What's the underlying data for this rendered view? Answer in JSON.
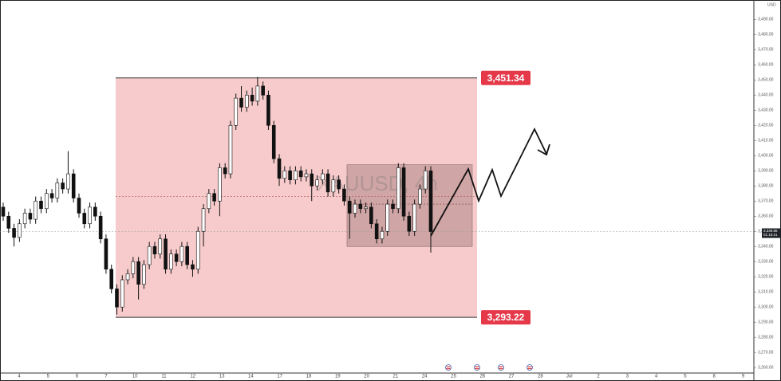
{
  "chart_data": {
    "type": "candlestick",
    "watermark": "XAUUSD, 4h",
    "currency": "USD",
    "ylim": [
      3256.4,
      3502.3
    ],
    "yticks": [
      {
        "value": 3260,
        "label": "3,260.00"
      },
      {
        "value": 3270,
        "label": "3,270.00"
      },
      {
        "value": 3280,
        "label": "3,280.00"
      },
      {
        "value": 3290,
        "label": "3,290.00"
      },
      {
        "value": 3300,
        "label": "3,300.00"
      },
      {
        "value": 3310,
        "label": "3,310.00"
      },
      {
        "value": 3320,
        "label": "3,320.00"
      },
      {
        "value": 3330,
        "label": "3,330.00"
      },
      {
        "value": 3340,
        "label": "3,340.00"
      },
      {
        "value": 3350,
        "label": "3,350.00"
      },
      {
        "value": 3360,
        "label": "3,360.00"
      },
      {
        "value": 3370,
        "label": "3,370.00"
      },
      {
        "value": 3380,
        "label": "3,380.00"
      },
      {
        "value": 3390,
        "label": "3,390.00"
      },
      {
        "value": 3400,
        "label": "3,400.00"
      },
      {
        "value": 3410,
        "label": "3,410.00"
      },
      {
        "value": 3420,
        "label": "3,420.00"
      },
      {
        "value": 3430,
        "label": "3,430.00"
      },
      {
        "value": 3440,
        "label": "3,440.00"
      },
      {
        "value": 3450,
        "label": "3,450.00"
      },
      {
        "value": 3460,
        "label": "3,460.00"
      },
      {
        "value": 3470,
        "label": "3,470.00"
      },
      {
        "value": 3480,
        "label": "3,480.00"
      },
      {
        "value": 3490,
        "label": "3,490.00"
      }
    ],
    "x_labels": [
      "4",
      "5",
      "6",
      "7",
      "10",
      "11",
      "12",
      "13",
      "14",
      "17",
      "18",
      "19",
      "20",
      "21",
      "24",
      "25",
      "26",
      "27",
      "28",
      "Jul",
      "2",
      "3",
      "4",
      "5",
      "8",
      "9"
    ],
    "open": [
      3366,
      3360,
      3352,
      3346,
      3355,
      3362,
      3358,
      3370,
      3365,
      3375,
      3372,
      3382,
      3378,
      3388,
      3372,
      3362,
      3355,
      3366,
      3360,
      3345,
      3325,
      3312,
      3300,
      3318,
      3322,
      3330,
      3315,
      3328,
      3340,
      3335,
      3345,
      3325,
      3335,
      3330,
      3340,
      3328,
      3325,
      3350,
      3365,
      3375,
      3370,
      3392,
      3388,
      3420,
      3438,
      3432,
      3440,
      3436,
      3446,
      3440,
      3420,
      3398,
      3385,
      3390,
      3384,
      3390,
      3386,
      3388,
      3380,
      3384,
      3388,
      3376,
      3384,
      3378,
      3370,
      3362,
      3368,
      3365,
      3366,
      3355,
      3345,
      3350,
      3368,
      3365,
      3392,
      3360,
      3350,
      3368,
      3378,
      3390
    ],
    "high": [
      3369,
      3363,
      3355,
      3358,
      3365,
      3365,
      3373,
      3373,
      3378,
      3378,
      3385,
      3385,
      3403,
      3391,
      3375,
      3365,
      3369,
      3369,
      3363,
      3348,
      3328,
      3315,
      3321,
      3325,
      3333,
      3333,
      3331,
      3343,
      3343,
      3348,
      3348,
      3338,
      3338,
      3343,
      3343,
      3331,
      3353,
      3368,
      3378,
      3378,
      3395,
      3395,
      3423,
      3441,
      3446,
      3443,
      3445,
      3452,
      3449,
      3443,
      3423,
      3401,
      3393,
      3393,
      3393,
      3393,
      3391,
      3391,
      3387,
      3391,
      3391,
      3387,
      3387,
      3381,
      3373,
      3371,
      3371,
      3369,
      3369,
      3358,
      3353,
      3371,
      3371,
      3395,
      3395,
      3363,
      3371,
      3381,
      3393,
      3393
    ],
    "low": [
      3357,
      3349,
      3340,
      3343,
      3352,
      3355,
      3355,
      3362,
      3362,
      3369,
      3369,
      3375,
      3375,
      3369,
      3359,
      3352,
      3352,
      3357,
      3342,
      3322,
      3309,
      3295,
      3297,
      3315,
      3319,
      3305,
      3312,
      3325,
      3332,
      3332,
      3322,
      3322,
      3327,
      3327,
      3325,
      3320,
      3322,
      3340,
      3362,
      3367,
      3360,
      3385,
      3385,
      3417,
      3429,
      3429,
      3433,
      3433,
      3437,
      3417,
      3395,
      3380,
      3382,
      3381,
      3381,
      3383,
      3383,
      3370,
      3377,
      3381,
      3373,
      3373,
      3375,
      3367,
      3345,
      3359,
      3362,
      3362,
      3352,
      3342,
      3342,
      3347,
      3362,
      3362,
      3357,
      3347,
      3347,
      3365,
      3375,
      3336
    ],
    "close": [
      3360,
      3352,
      3346,
      3355,
      3362,
      3358,
      3370,
      3365,
      3375,
      3372,
      3382,
      3378,
      3388,
      3372,
      3362,
      3355,
      3366,
      3360,
      3345,
      3325,
      3312,
      3300,
      3318,
      3322,
      3330,
      3315,
      3328,
      3340,
      3335,
      3345,
      3325,
      3335,
      3330,
      3340,
      3328,
      3325,
      3350,
      3365,
      3375,
      3370,
      3392,
      3388,
      3420,
      3438,
      3432,
      3440,
      3436,
      3446,
      3440,
      3420,
      3398,
      3385,
      3390,
      3384,
      3390,
      3386,
      3388,
      3380,
      3384,
      3388,
      3376,
      3384,
      3378,
      3370,
      3362,
      3368,
      3365,
      3366,
      3355,
      3345,
      3350,
      3368,
      3365,
      3392,
      3360,
      3350,
      3368,
      3378,
      3390,
      3349.86
    ],
    "zones": [
      {
        "value": 3451.34,
        "label": "3,451.34"
      },
      {
        "value": 3293.22,
        "label": "3,293.22"
      }
    ],
    "range_box": {
      "top": 3394,
      "bottom": 3340
    },
    "levels": [
      3373,
      3368
    ],
    "current_price": {
      "value": 3349.86,
      "label": "3,349.86"
    },
    "timer": "01:18:21"
  }
}
